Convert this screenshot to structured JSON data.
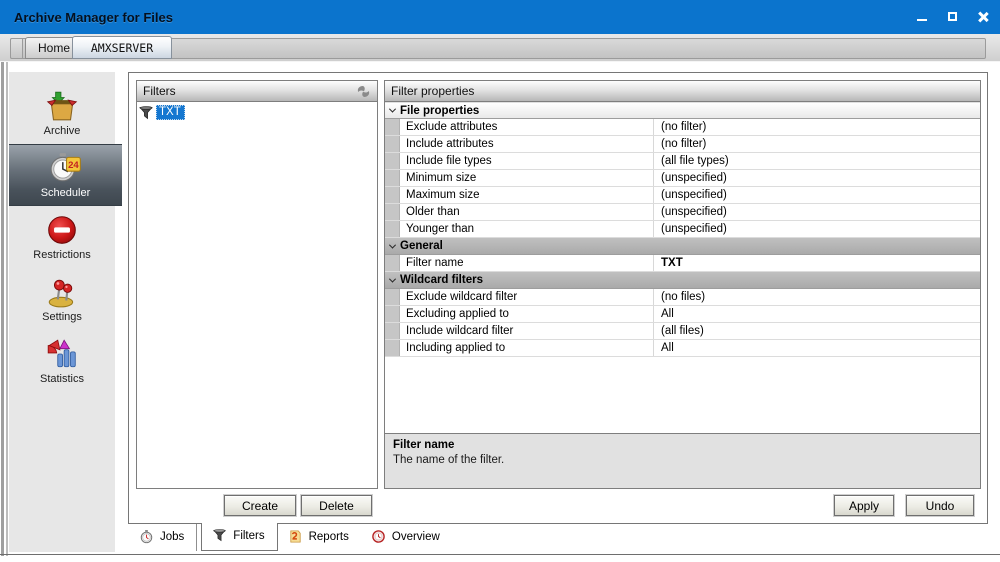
{
  "window": {
    "title": "Archive Manager for Files",
    "controls": [
      "minimize",
      "maximize",
      "close"
    ]
  },
  "top_tabs": [
    {
      "label": "Home",
      "selected": false
    },
    {
      "label": "AMXSERVER",
      "selected": true
    }
  ],
  "sidebar": {
    "items": [
      {
        "label": "Archive",
        "icon": "archive-box-icon",
        "selected": false
      },
      {
        "label": "Scheduler",
        "icon": "scheduler-clock-icon",
        "selected": true
      },
      {
        "label": "Restrictions",
        "icon": "no-entry-icon",
        "selected": false
      },
      {
        "label": "Settings",
        "icon": "joystick-icon",
        "selected": false
      },
      {
        "label": "Statistics",
        "icon": "chart-icon",
        "selected": false
      }
    ]
  },
  "filters_panel": {
    "title": "Filters",
    "header_icon": "refresh-icon",
    "items": [
      {
        "label": "TXT",
        "icon": "funnel-icon",
        "selected": true
      }
    ],
    "create_label": "Create",
    "delete_label": "Delete"
  },
  "properties_panel": {
    "title": "Filter properties",
    "sections": [
      {
        "header": "File properties",
        "style": "light",
        "rows": [
          {
            "label": "Exclude attributes",
            "value": "(no filter)",
            "bold": false
          },
          {
            "label": "Include attributes",
            "value": "(no filter)",
            "bold": false
          },
          {
            "label": "Include file types",
            "value": "(all file types)",
            "bold": false
          },
          {
            "label": "Minimum size",
            "value": "(unspecified)",
            "bold": false
          },
          {
            "label": "Maximum size",
            "value": "(unspecified)",
            "bold": false
          },
          {
            "label": "Older than",
            "value": "(unspecified)",
            "bold": false
          },
          {
            "label": "Younger than",
            "value": "(unspecified)",
            "bold": false
          }
        ]
      },
      {
        "header": "General",
        "style": "gray",
        "rows": [
          {
            "label": "Filter name",
            "value": "TXT",
            "bold": true
          }
        ]
      },
      {
        "header": "Wildcard filters",
        "style": "gray",
        "rows": [
          {
            "label": "Exclude wildcard filter",
            "value": "(no files)",
            "bold": false
          },
          {
            "label": "Excluding applied to",
            "value": "All",
            "bold": false
          },
          {
            "label": "Include wildcard filter",
            "value": "(all files)",
            "bold": false
          },
          {
            "label": "Including applied to",
            "value": "All",
            "bold": false
          }
        ]
      }
    ],
    "description": {
      "title": "Filter name",
      "text": "The name of the filter."
    },
    "apply_label": "Apply",
    "undo_label": "Undo"
  },
  "bottom_tabs": [
    {
      "label": "Jobs",
      "icon": "stopwatch-icon",
      "selected": false
    },
    {
      "label": "Filters",
      "icon": "funnel-icon",
      "selected": true
    },
    {
      "label": "Reports",
      "icon": "report-icon",
      "selected": false
    },
    {
      "label": "Overview",
      "icon": "overview-clock-icon",
      "selected": false
    }
  ],
  "colors": {
    "titlebar": "#0b74cd",
    "selection": "#1577d0",
    "sidebar_selected_top": "#9aa2aa",
    "sidebar_selected_bottom": "#3e474f",
    "section_gray": "#b2b2b2",
    "panel_border": "#7e7e7e"
  }
}
